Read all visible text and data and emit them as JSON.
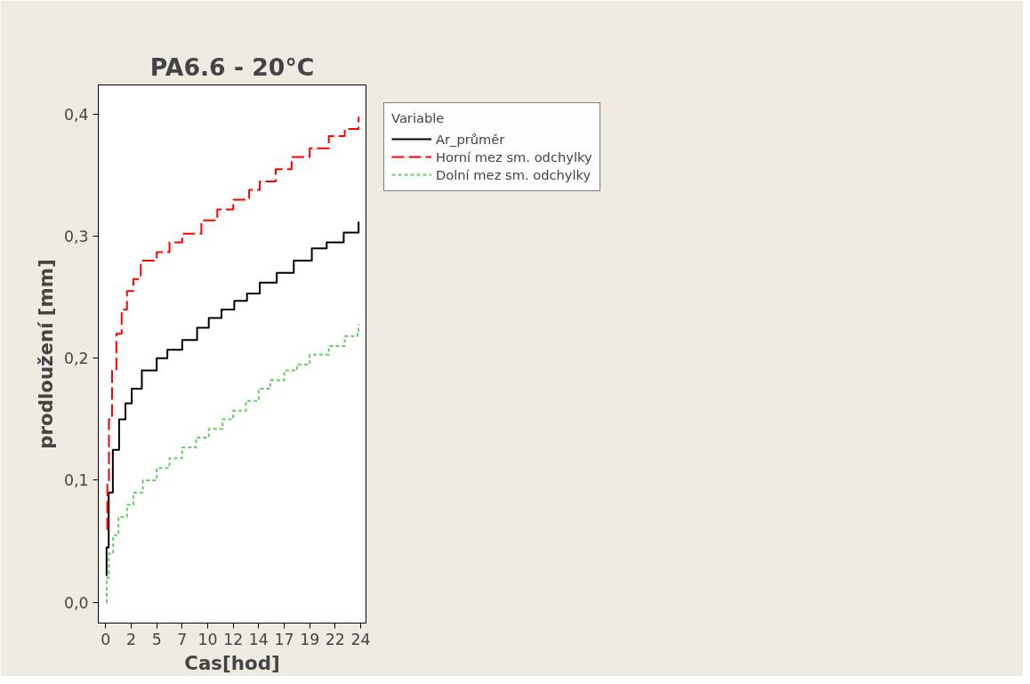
{
  "chart_data": {
    "type": "step",
    "title": "PA6.6 - 20°C",
    "xlabel": "Cas[hod]",
    "ylabel": "prodloužení [mm]",
    "legend_title": "Variable",
    "legend": "right",
    "grid": false,
    "xlim": [
      -0.7,
      24.5
    ],
    "ylim": [
      -0.017,
      0.424
    ],
    "xticks": [
      0,
      {
        "value": 2.4,
        "label": "2"
      },
      {
        "value": 4.8,
        "label": "5"
      },
      {
        "value": 7.2,
        "label": "7"
      },
      {
        "value": 9.6,
        "label": "10"
      },
      12,
      {
        "value": 14.4,
        "label": "14"
      },
      {
        "value": 16.8,
        "label": "17"
      },
      {
        "value": 19.2,
        "label": "19"
      },
      {
        "value": 21.6,
        "label": "22"
      },
      24
    ],
    "yticks": [
      {
        "value": 0,
        "label": "0,0"
      },
      {
        "value": 0.1,
        "label": "0,1"
      },
      {
        "value": 0.2,
        "label": "0,2"
      },
      {
        "value": 0.3,
        "label": "0,3"
      },
      {
        "value": 0.4,
        "label": "0,4"
      }
    ],
    "series": [
      {
        "name": "Ar_průměr",
        "color": "#000000",
        "line_style": "solid",
        "x": [
          0.05,
          0.08,
          0.28,
          0.67,
          1.26,
          1.86,
          2.45,
          3.4,
          4.8,
          5.8,
          7.2,
          8.6,
          9.7,
          10.9,
          12.1,
          13.3,
          14.5,
          16.1,
          17.7,
          19.4,
          20.8,
          22.4,
          23.8
        ],
        "values": [
          0.022,
          0.045,
          0.09,
          0.125,
          0.15,
          0.163,
          0.175,
          0.19,
          0.2,
          0.207,
          0.215,
          0.225,
          0.233,
          0.24,
          0.247,
          0.253,
          0.262,
          0.27,
          0.28,
          0.29,
          0.295,
          0.303,
          0.312
        ]
      },
      {
        "name": "Horní mez sm. odchylky",
        "color": "#ff0000",
        "line_style": "dashed",
        "x": [
          0.05,
          0.15,
          0.3,
          0.6,
          1.0,
          1.5,
          2.0,
          2.6,
          3.3,
          4.8,
          6.0,
          7.2,
          9.0,
          10.5,
          12.0,
          13.5,
          14.5,
          16.0,
          17.5,
          19.2,
          21.0,
          22.5,
          23.8
        ],
        "values": [
          0.06,
          0.1,
          0.15,
          0.19,
          0.22,
          0.24,
          0.255,
          0.265,
          0.28,
          0.287,
          0.295,
          0.302,
          0.313,
          0.322,
          0.33,
          0.338,
          0.345,
          0.355,
          0.365,
          0.372,
          0.382,
          0.388,
          0.398
        ]
      },
      {
        "name": "Dolní mez sm. odchylky",
        "color": "#66cc66",
        "line_style": "dotted",
        "x": [
          0.05,
          0.1,
          0.3,
          0.7,
          1.2,
          2.0,
          2.6,
          3.5,
          4.8,
          6.0,
          7.2,
          8.5,
          9.7,
          11.0,
          12.0,
          13.2,
          14.4,
          15.5,
          16.8,
          18.0,
          19.2,
          21.0,
          22.5,
          23.7,
          23.8
        ],
        "values": [
          0.0,
          0.02,
          0.04,
          0.055,
          0.07,
          0.08,
          0.09,
          0.1,
          0.11,
          0.118,
          0.127,
          0.135,
          0.142,
          0.15,
          0.157,
          0.165,
          0.175,
          0.182,
          0.19,
          0.195,
          0.203,
          0.21,
          0.218,
          0.22,
          0.228
        ]
      }
    ]
  }
}
